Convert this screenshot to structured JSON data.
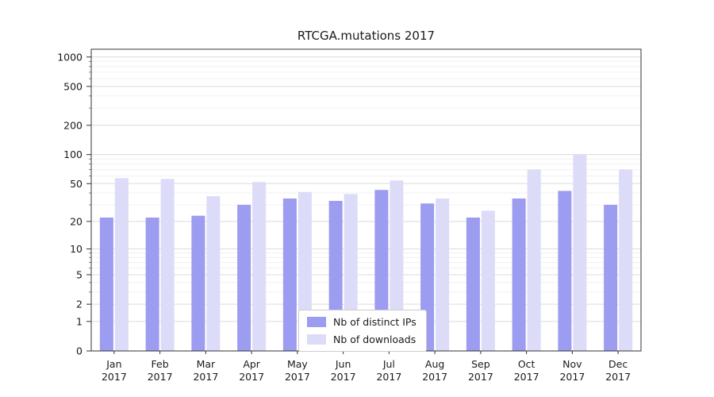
{
  "chart_data": {
    "type": "bar",
    "title": "RTCGA.mutations 2017",
    "categories": [
      "Jan",
      "Feb",
      "Mar",
      "Apr",
      "May",
      "Jun",
      "Jul",
      "Aug",
      "Sep",
      "Oct",
      "Nov",
      "Dec"
    ],
    "year_label": "2017",
    "series": [
      {
        "name": "Nb of distinct IPs",
        "color": "#9c9cf0",
        "values": [
          22,
          22,
          23,
          30,
          35,
          33,
          43,
          31,
          22,
          35,
          42,
          30
        ]
      },
      {
        "name": "Nb of downloads",
        "color": "#dcdcf8",
        "values": [
          57,
          56,
          37,
          52,
          41,
          39,
          54,
          35,
          26,
          70,
          100,
          70
        ]
      }
    ],
    "y_ticks": [
      0,
      1,
      2,
      5,
      10,
      20,
      50,
      100,
      200,
      500,
      1000
    ],
    "y_minor_ticks": [
      3,
      4,
      6,
      7,
      8,
      9,
      30,
      40,
      60,
      70,
      80,
      90,
      300,
      400,
      600,
      700,
      800,
      900
    ],
    "scale": "log1p",
    "y_axis_top_value": 1200,
    "xlabel": "",
    "ylabel": "",
    "grid": true,
    "legend_position": "bottom-center",
    "colors": {
      "major_grid": "#dcdcdc",
      "minor_grid": "#f0f0f0",
      "axis": "#333333",
      "text": "#1a1a1a"
    }
  }
}
